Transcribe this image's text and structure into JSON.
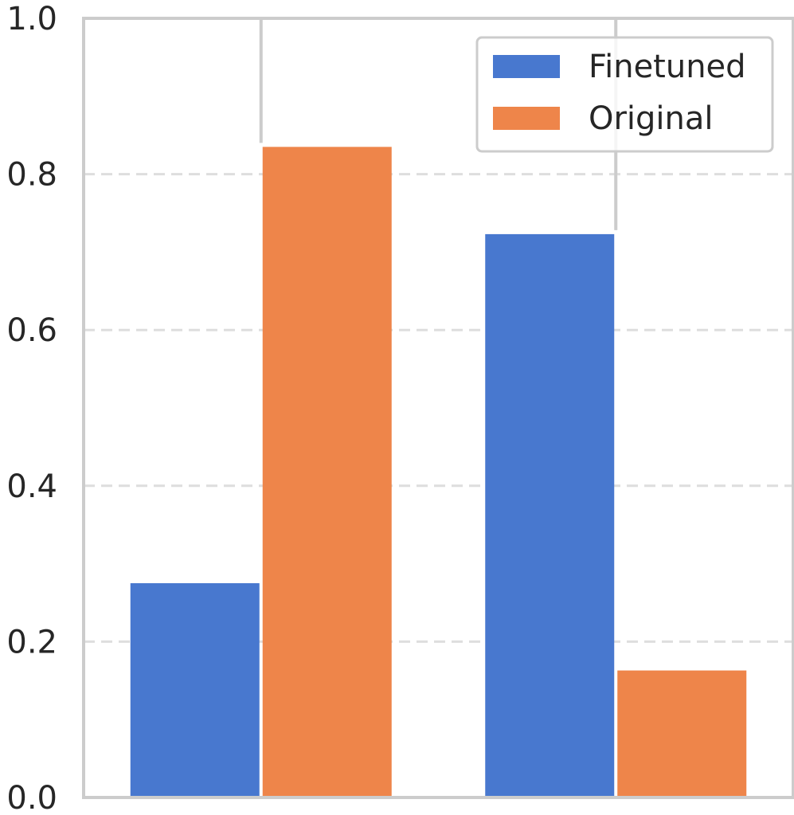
{
  "chart_data": {
    "type": "bar",
    "categories": [
      "",
      ""
    ],
    "series": [
      {
        "name": "Finetuned",
        "color": "#4878cf",
        "values": [
          0.275,
          0.723
        ]
      },
      {
        "name": "Original",
        "color": "#ee854a",
        "values": [
          0.835,
          0.163
        ]
      }
    ],
    "ylim": [
      0,
      1.0
    ],
    "yticks": [
      0.0,
      0.2,
      0.4,
      0.6,
      0.8,
      1.0
    ],
    "ytick_labels": [
      "0.0",
      "0.2",
      "0.4",
      "0.6",
      "0.8",
      "1.0"
    ],
    "grid": "horizontal dashed",
    "legend_position": "top-right",
    "title": "",
    "xlabel": "",
    "ylabel": ""
  }
}
